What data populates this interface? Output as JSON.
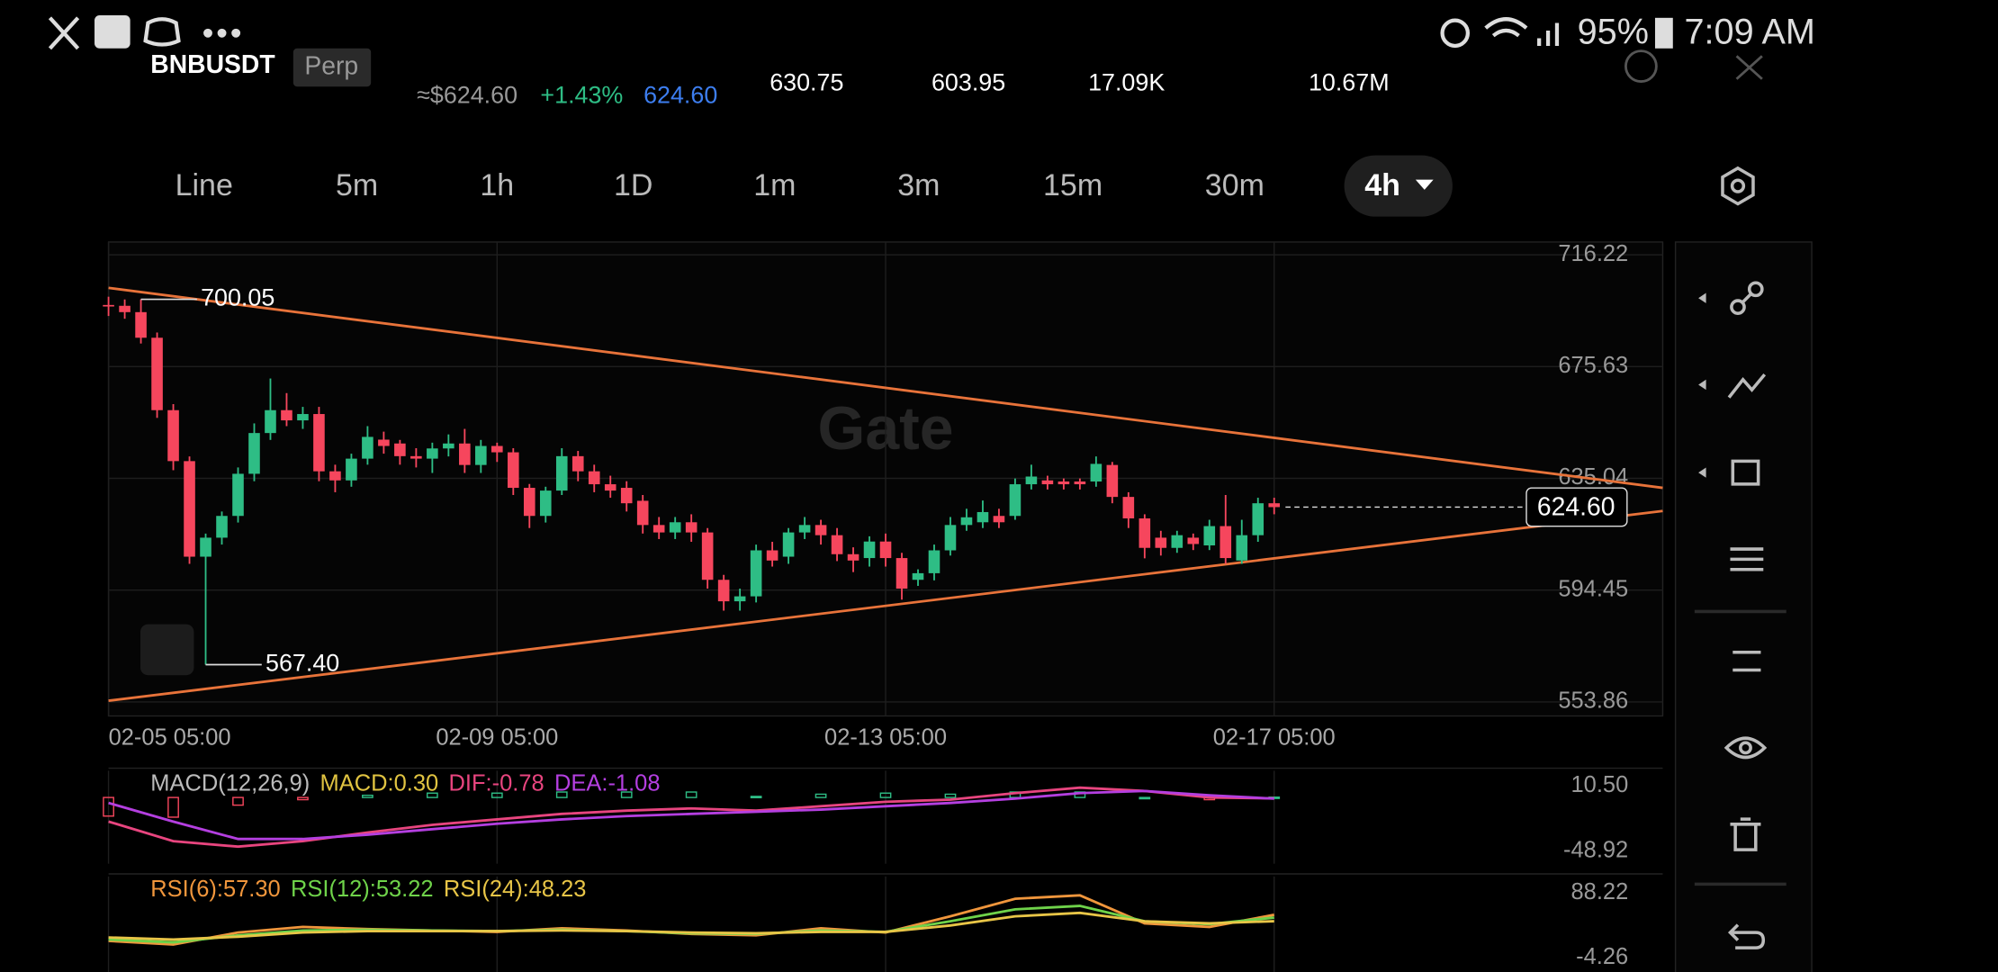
{
  "status_bar": {
    "battery": "95%",
    "time": "7:09 AM"
  },
  "header": {
    "symbol": "BNBUSDT",
    "contract": "Perp",
    "usd_price": "≈$624.60",
    "change": "+1.43%",
    "last_price": "624.60",
    "high": "630.75",
    "low": "603.95",
    "volume": "17.09K",
    "turnover": "10.67M"
  },
  "tabs": [
    "Line",
    "5m",
    "1h",
    "1D",
    "1m",
    "3m",
    "15m",
    "30m",
    "4h"
  ],
  "active_tab": 8,
  "watermark": "Gate",
  "chart_data": [
    {
      "type": "candlestick",
      "xlim": [
        0,
        96
      ],
      "xticks": [
        {
          "value": 0,
          "label": "02-05 05:00"
        },
        {
          "value": 24,
          "label": "02-09 05:00"
        },
        {
          "value": 48,
          "label": "02-13 05:00"
        },
        {
          "value": 72,
          "label": "02-17 05:00"
        }
      ],
      "ylim": [
        548.77,
        720.85
      ],
      "yticks": [
        716.22,
        675.63,
        635.04,
        594.45,
        553.86
      ],
      "grid": true,
      "up_color": "#2ebd85",
      "down_color": "#f6465d",
      "open": [
        698.0,
        697.7,
        695.4,
        686.1,
        659.8,
        641.3,
        606.6,
        613.5,
        621.4,
        636.7,
        651.5,
        659.8,
        656.1,
        658.4,
        637.6,
        634.3,
        642.2,
        649.1,
        647.7,
        643.1,
        642.2,
        645.9,
        647.7,
        639.9,
        646.8,
        644.5,
        631.6,
        621.4,
        630.6,
        643.1,
        637.6,
        632.9,
        631.6,
        626.9,
        618.1,
        615.4,
        619.1,
        615.4,
        598.2,
        590.4,
        592.2,
        608.9,
        606.6,
        615.4,
        618.1,
        614.4,
        607.5,
        606.1,
        612.1,
        606.1,
        598.2,
        600.6,
        608.9,
        618.1,
        619.1,
        621.4,
        621.4,
        632.9,
        634.3,
        633.9,
        633.9,
        633.9,
        639.9,
        628.3,
        620.5,
        613.5,
        609.8,
        613.5,
        610.7,
        617.7,
        605.2,
        614.4,
        626.0
      ],
      "high": [
        701,
        700,
        700.05,
        688,
        662,
        643,
        615,
        623,
        639,
        655,
        671.3,
        666,
        661,
        661,
        640,
        644,
        654,
        652,
        649,
        646,
        648,
        651,
        653,
        649,
        648,
        646,
        633,
        632,
        646,
        645,
        640,
        636,
        634,
        629,
        621,
        621,
        622,
        617,
        600,
        595,
        611,
        612,
        617,
        621,
        620,
        617,
        610,
        614,
        615,
        608,
        602,
        611,
        621,
        624,
        627,
        624,
        635,
        640,
        636,
        635,
        635,
        643,
        641,
        630,
        622,
        616,
        616,
        615,
        620,
        629,
        620,
        628,
        628
      ],
      "low": [
        694,
        693,
        684,
        657,
        638,
        604,
        567.4,
        611,
        619,
        634,
        649,
        654,
        653,
        634,
        630,
        632,
        640,
        644,
        640,
        639,
        637,
        643,
        637,
        637,
        641,
        629,
        617,
        619,
        629,
        634,
        630,
        628,
        623,
        615,
        613,
        613,
        612,
        595,
        587,
        587,
        590,
        603,
        604,
        613,
        611,
        605,
        601,
        603,
        603,
        591,
        596,
        598,
        607,
        616,
        617,
        617,
        620,
        631,
        631,
        631,
        631,
        632,
        626,
        617,
        606,
        607,
        608,
        609,
        609,
        604,
        604,
        612,
        622
      ],
      "close": [
        697.7,
        695.4,
        686.1,
        659.8,
        641.3,
        606.6,
        613.5,
        621.4,
        636.7,
        651.5,
        659.8,
        656.1,
        658.4,
        637.6,
        634.3,
        642.2,
        650.1,
        646.8,
        643.1,
        642.2,
        645.9,
        647.7,
        639.9,
        646.8,
        644.5,
        631.6,
        621.4,
        630.6,
        643.1,
        637.6,
        632.9,
        630.6,
        626.0,
        618.1,
        615.4,
        619.1,
        615.4,
        598.2,
        590.4,
        592.2,
        608.9,
        605.2,
        615.4,
        618.1,
        614.4,
        607.5,
        605.2,
        612.1,
        606.1,
        595.0,
        600.6,
        608.9,
        618.1,
        620.9,
        622.8,
        619.1,
        632.9,
        635.7,
        632.9,
        632.9,
        632.9,
        640.3,
        628.3,
        620.5,
        609.8,
        609.8,
        614.4,
        611.2,
        617.7,
        606.1,
        614.4,
        626.0,
        624.6
      ],
      "trendlines": [
        {
          "x": [
            0,
            96
          ],
          "y": [
            704.2,
            631.6
          ],
          "color": "#e8733a"
        },
        {
          "x": [
            0,
            96
          ],
          "y": [
            554.3,
            623.2
          ],
          "color": "#e8733a"
        }
      ],
      "annotations": [
        {
          "x": 2,
          "value": 700.05,
          "label": "700.05"
        },
        {
          "x": 6,
          "value": 567.4,
          "label": "567.40"
        }
      ],
      "price_line": {
        "value": 624.6,
        "label": "624.60"
      }
    },
    {
      "type": "macd",
      "title": "MACD(12,26,9)",
      "x": [
        0,
        4,
        8,
        12,
        16,
        20,
        24,
        28,
        32,
        36,
        40,
        44,
        48,
        52,
        56,
        60,
        64,
        68,
        72
      ],
      "xlim": [
        0,
        96
      ],
      "ylim": [
        -60.57,
        24.48
      ],
      "yticks": [
        {
          "value": 10.5,
          "label": "10.50"
        },
        -48.92
      ],
      "series": [
        {
          "name": "MACD:0.30",
          "color": "#e0c341",
          "up_color": "#2ebd85",
          "down_color": "#f6465d",
          "values": [
            -17,
            -18,
            -7,
            -2,
            2,
            4,
            4,
            5,
            5,
            5,
            1,
            3,
            4,
            3,
            5,
            5,
            0,
            -2,
            0.3
          ]
        },
        {
          "name": "DIF:-0.78",
          "color": "#e8457f",
          "values": [
            -22,
            -40,
            -45,
            -40,
            -32,
            -25,
            -20,
            -15,
            -12,
            -10,
            -12,
            -8,
            -4,
            -2,
            4,
            9,
            6,
            0,
            -0.78
          ]
        },
        {
          "name": "DEA:-1.08",
          "color": "#b43fe0",
          "values": [
            -5,
            -22,
            -38,
            -38,
            -34,
            -29,
            -24,
            -20,
            -17,
            -15,
            -13,
            -11,
            -8,
            -5,
            -1,
            4,
            6,
            2,
            -1.08
          ]
        }
      ]
    },
    {
      "type": "line",
      "x": [
        0,
        4,
        8,
        12,
        16,
        20,
        24,
        28,
        32,
        36,
        40,
        44,
        48,
        52,
        56,
        60,
        64,
        68,
        72
      ],
      "xlim": [
        0,
        96
      ],
      "ylim": [
        -24.2,
        111.8
      ],
      "yticks": [
        88.22,
        -4.26
      ],
      "series": [
        {
          "name": "RSI(6):57.30",
          "color": "#f0963c",
          "values": [
            20,
            15,
            32,
            40,
            37,
            35,
            33,
            38,
            35,
            30,
            28,
            38,
            32,
            55,
            80,
            85,
            45,
            40,
            57.3
          ]
        },
        {
          "name": "RSI(12):53.22",
          "color": "#6fd34a",
          "values": [
            22,
            18,
            28,
            35,
            36,
            35,
            34,
            36,
            34,
            31,
            30,
            35,
            33,
            48,
            65,
            70,
            48,
            44,
            53.22
          ]
        },
        {
          "name": "RSI(24):48.23",
          "color": "#e8c547",
          "values": [
            25,
            22,
            26,
            32,
            34,
            34,
            34,
            35,
            34,
            32,
            31,
            33,
            33,
            42,
            55,
            60,
            48,
            45,
            48.23
          ]
        }
      ]
    }
  ]
}
